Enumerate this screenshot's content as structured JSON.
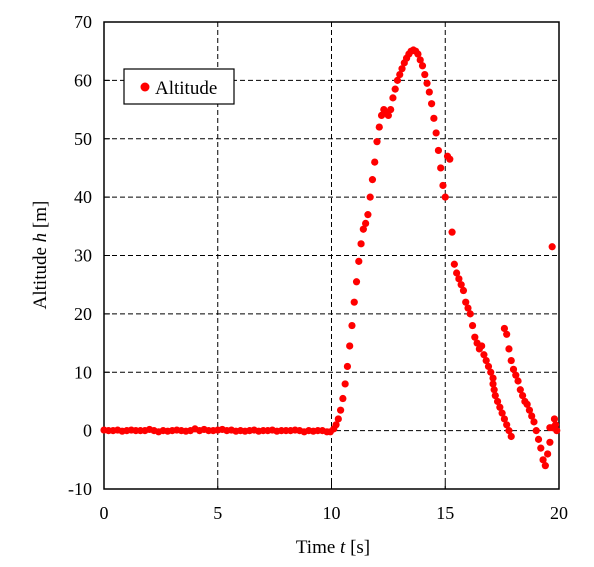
{
  "chart_data": {
    "type": "scatter",
    "xlabel_prefix": "Time ",
    "xlabel_var": "t",
    "xlabel_unit": " [s]",
    "ylabel_prefix": "Altitude ",
    "ylabel_var": "h",
    "ylabel_unit": " [m]",
    "xlim": [
      0,
      20
    ],
    "ylim": [
      -10,
      70
    ],
    "xticks": [
      0,
      5,
      10,
      15,
      20
    ],
    "yticks": [
      -10,
      0,
      10,
      20,
      30,
      40,
      50,
      60,
      70
    ],
    "grid": true,
    "legend_position": "top-left",
    "series": [
      {
        "name": "Altitude",
        "color": "#ff0000",
        "x": [
          0.0,
          0.2,
          0.4,
          0.6,
          0.8,
          1.0,
          1.2,
          1.4,
          1.6,
          1.8,
          2.0,
          2.2,
          2.4,
          2.6,
          2.8,
          3.0,
          3.2,
          3.4,
          3.6,
          3.8,
          4.0,
          4.2,
          4.4,
          4.6,
          4.8,
          5.0,
          5.2,
          5.4,
          5.6,
          5.8,
          6.0,
          6.2,
          6.4,
          6.6,
          6.8,
          7.0,
          7.2,
          7.4,
          7.6,
          7.8,
          8.0,
          8.2,
          8.4,
          8.6,
          8.8,
          9.0,
          9.2,
          9.4,
          9.6,
          9.8,
          9.95,
          10.1,
          10.2,
          10.3,
          10.4,
          10.5,
          10.6,
          10.7,
          10.8,
          10.9,
          11.0,
          11.1,
          11.2,
          11.3,
          11.4,
          11.5,
          11.6,
          11.7,
          11.8,
          11.9,
          12.0,
          12.1,
          12.2,
          12.3,
          12.4,
          12.5,
          12.6,
          12.7,
          12.8,
          12.9,
          13.0,
          13.1,
          13.2,
          13.3,
          13.4,
          13.5,
          13.6,
          13.7,
          13.8,
          13.9,
          14.0,
          14.1,
          14.2,
          14.3,
          14.4,
          14.5,
          14.6,
          14.7,
          14.8,
          14.9,
          15.0,
          15.1,
          15.2,
          15.3,
          15.4,
          15.5,
          15.6,
          15.7,
          15.8,
          15.9,
          16.0,
          16.1,
          16.2,
          16.3,
          16.4,
          16.5,
          16.6,
          16.7,
          16.8,
          16.9,
          17.0,
          17.1,
          17.1,
          17.15,
          17.2,
          17.3,
          17.4,
          17.5,
          17.6,
          17.7,
          17.8,
          17.9,
          17.6,
          17.7,
          17.8,
          17.9,
          18.0,
          18.1,
          18.2,
          18.3,
          18.4,
          18.5,
          18.6,
          18.7,
          18.8,
          18.9,
          19.0,
          19.1,
          19.2,
          19.3,
          19.4,
          19.5,
          19.6,
          19.7,
          19.8,
          19.85,
          19.9,
          19.6,
          19.7
        ],
        "y": [
          0.1,
          0.0,
          0.0,
          0.1,
          -0.1,
          0.0,
          0.1,
          0.0,
          0.0,
          0.0,
          0.2,
          0.0,
          -0.2,
          0.0,
          -0.1,
          0.0,
          0.1,
          0.0,
          -0.1,
          0.0,
          0.3,
          0.0,
          0.2,
          0.0,
          0.0,
          0.1,
          0.2,
          0.0,
          0.1,
          -0.1,
          0.0,
          -0.1,
          0.0,
          0.1,
          -0.1,
          0.0,
          0.0,
          0.1,
          -0.1,
          0.0,
          0.0,
          0.0,
          0.1,
          0.0,
          -0.2,
          0.0,
          -0.1,
          0.0,
          0.0,
          -0.2,
          -0.2,
          0.3,
          1.0,
          2.0,
          3.5,
          5.5,
          8.0,
          11.0,
          14.5,
          18.0,
          22.0,
          25.5,
          29.0,
          32.0,
          34.5,
          35.5,
          37.0,
          40.0,
          43.0,
          46.0,
          49.5,
          52.0,
          54.0,
          55.0,
          54.5,
          54.0,
          55.0,
          57.0,
          58.5,
          60.0,
          61.0,
          62.0,
          63.0,
          63.8,
          64.5,
          65.0,
          65.2,
          65.0,
          64.5,
          63.5,
          62.5,
          61.0,
          59.5,
          58.0,
          56.0,
          53.5,
          51.0,
          48.0,
          45.0,
          42.0,
          40.0,
          47.0,
          46.5,
          34.0,
          28.5,
          27.0,
          26.0,
          25.0,
          24.0,
          22.0,
          21.0,
          20.0,
          18.0,
          16.0,
          15.0,
          14.0,
          14.5,
          13.0,
          12.0,
          11.0,
          10.0,
          9.0,
          8.0,
          7.0,
          6.0,
          5.0,
          4.0,
          3.0,
          2.0,
          1.0,
          0.0,
          -1.0,
          17.5,
          16.5,
          14.0,
          12.0,
          10.5,
          9.5,
          8.5,
          7.0,
          6.0,
          5.0,
          4.5,
          3.5,
          2.5,
          1.5,
          0.0,
          -1.5,
          -3.0,
          -5.0,
          -6.0,
          -4.0,
          -2.0,
          0.5,
          2.0,
          1.0,
          0.0,
          0.5,
          31.5
        ],
        "y_corrected_note": ""
      }
    ]
  }
}
